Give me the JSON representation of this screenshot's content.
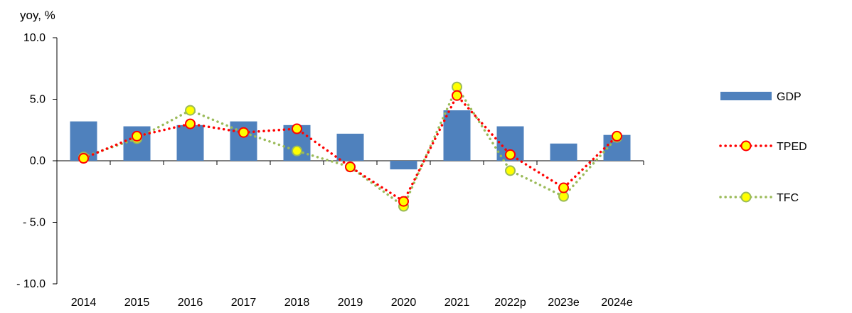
{
  "chart_data": {
    "type": "bar",
    "unit_label": "yoy, %",
    "title": "",
    "xlabel": "",
    "ylabel": "",
    "ylim": [
      -10,
      10
    ],
    "yticks": [
      10,
      5,
      0,
      -5,
      -10
    ],
    "ytick_labels": [
      "10.0",
      "5.0",
      "0.0",
      "- 5.0",
      "- 10.0"
    ],
    "categories": [
      "2014",
      "2015",
      "2016",
      "2017",
      "2018",
      "2019",
      "2020",
      "2021",
      "2022p",
      "2023e",
      "2024e"
    ],
    "series": [
      {
        "name": "GDP",
        "kind": "bar",
        "color": "#4F81BD",
        "values": [
          3.2,
          2.8,
          2.9,
          3.2,
          2.9,
          2.2,
          -0.7,
          4.1,
          2.8,
          1.4,
          2.1
        ]
      },
      {
        "name": "TPED",
        "kind": "line",
        "line_color": "#FF0000",
        "marker_fill": "#FFFF00",
        "marker_edge": "#FF0000",
        "values": [
          0.2,
          2.0,
          3.0,
          2.3,
          2.6,
          -0.5,
          -3.3,
          5.3,
          0.5,
          -2.2,
          2.0
        ]
      },
      {
        "name": "TFC",
        "kind": "line",
        "line_color": "#9BBB59",
        "marker_fill": "#FFFF00",
        "marker_edge": "#9BBB59",
        "values": [
          0.3,
          1.8,
          4.1,
          2.3,
          0.8,
          -0.5,
          -3.7,
          6.0,
          -0.8,
          -2.9,
          1.9
        ]
      }
    ],
    "legend_position": "right",
    "grid": false
  }
}
